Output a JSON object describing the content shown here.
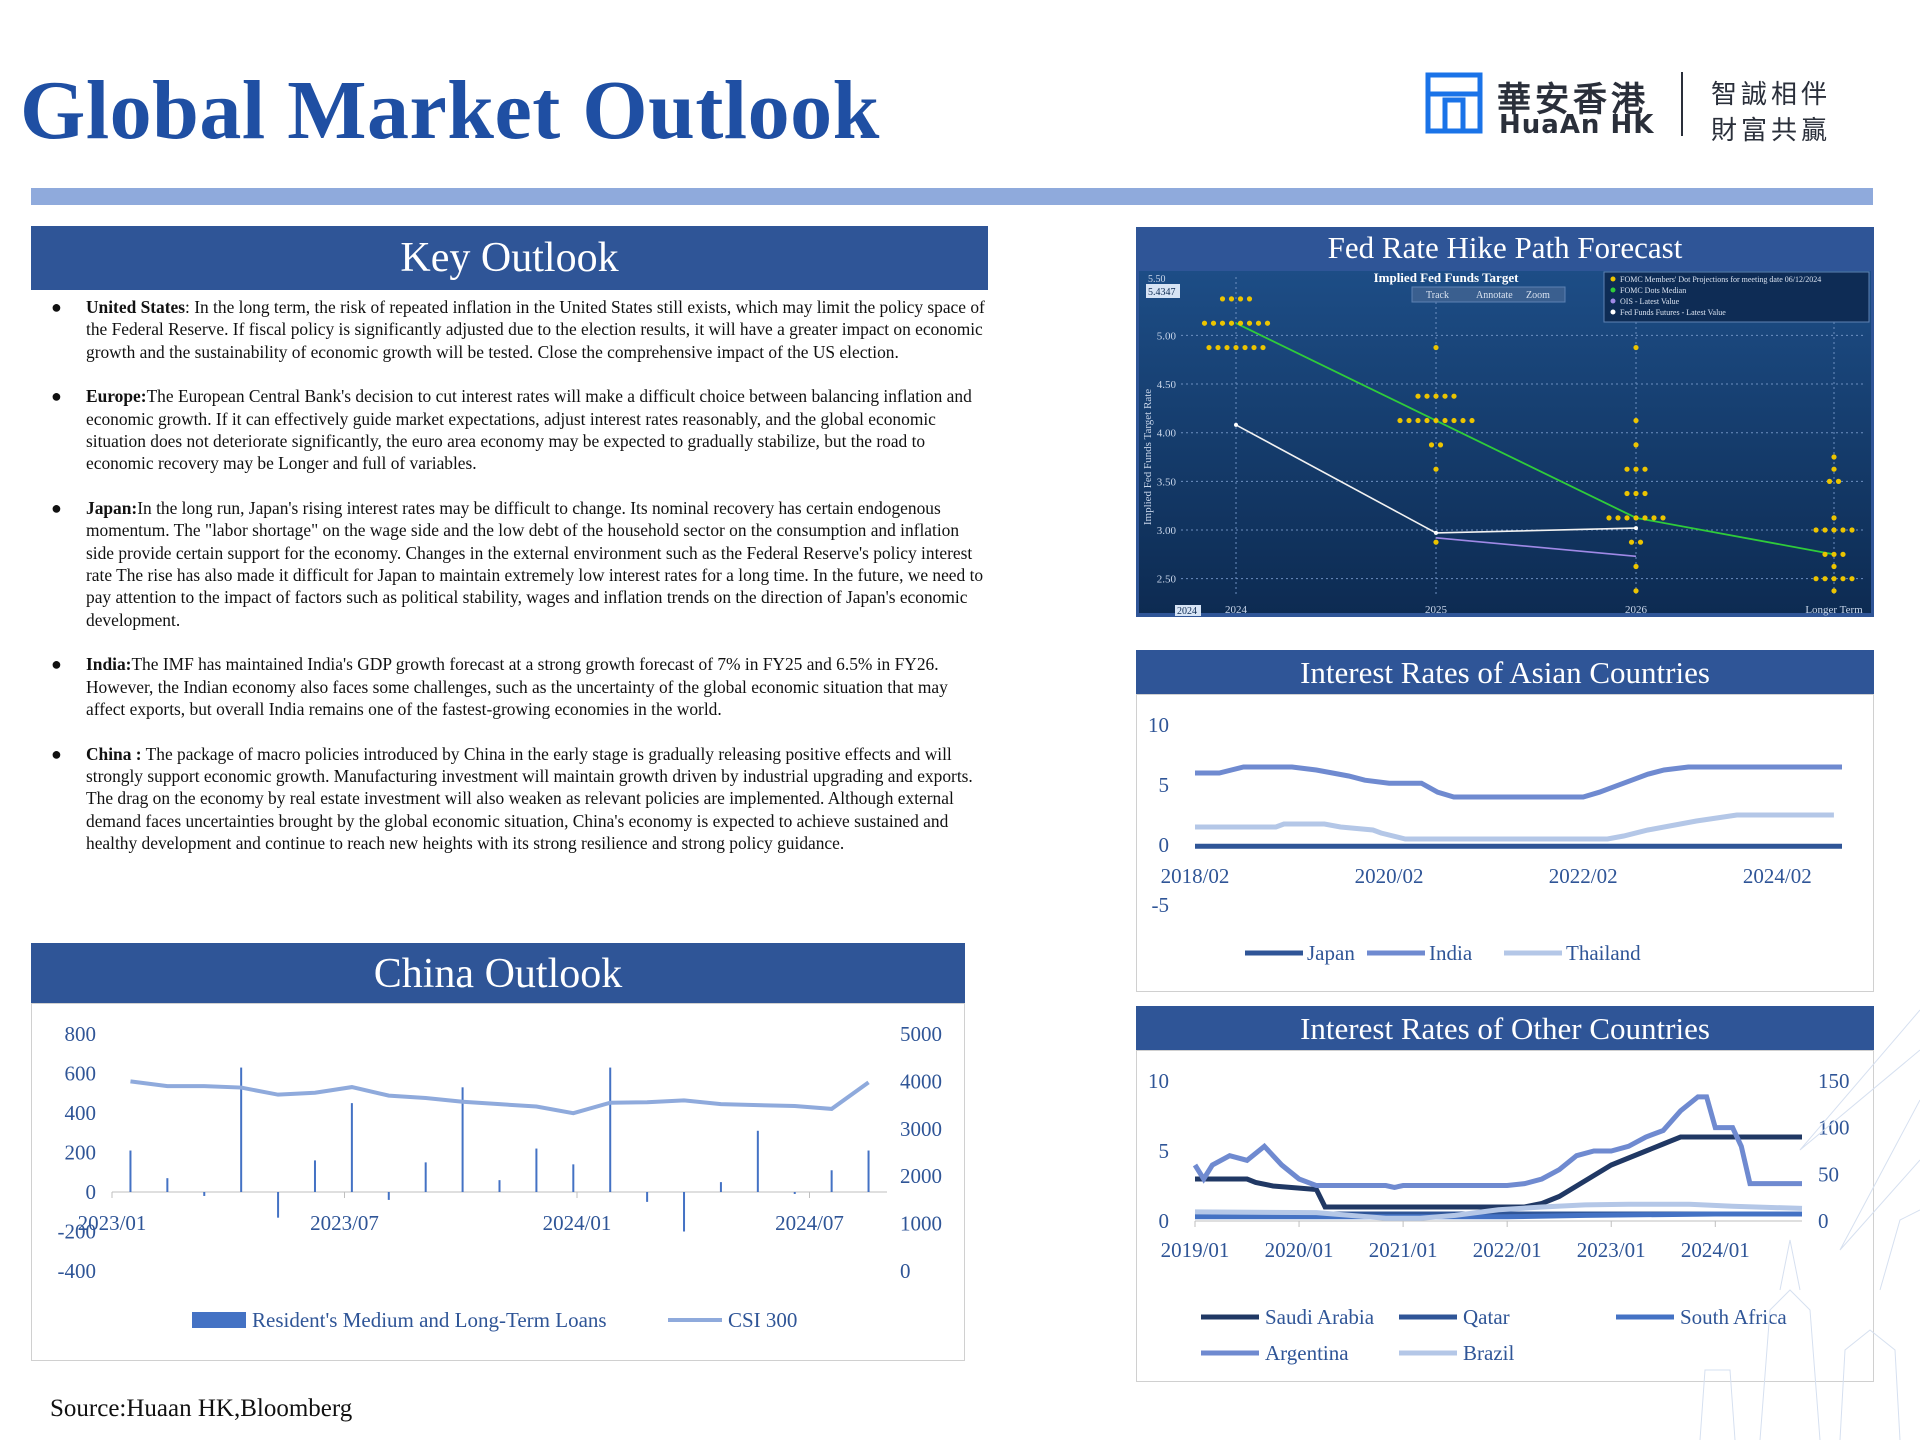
{
  "title": "Global Market Outlook",
  "logo": {
    "cn": "華安香港",
    "en": "HuaAn HK",
    "slogan_line1": "智誠相伴",
    "slogan_line2": "財富共贏"
  },
  "key_outlook": {
    "heading": "Key Outlook",
    "items": [
      {
        "label": "United States",
        "sep": ": ",
        "text": "In the long term, the risk of repeated inflation in the United States still exists, which may limit the policy space of the Federal Reserve. If fiscal policy is significantly adjusted due to the election results, it will have a greater impact on economic growth and the sustainability of economic growth will be tested. Close the comprehensive impact of the US election."
      },
      {
        "label": "Europe:",
        "sep": "",
        "text": "The European Central Bank's decision to cut interest rates will make a difficult choice between balancing inflation and economic growth. If it can effectively guide market expectations, adjust interest rates reasonably, and the global economic situation does not deteriorate significantly, the euro area economy may be expected to gradually stabilize, but the road to economic recovery may be Longer and full of variables."
      },
      {
        "label": "Japan:",
        "sep": "",
        "text": "In the long run, Japan's rising interest rates may be difficult to change. Its nominal recovery has certain endogenous momentum. The \"labor shortage\" on the wage side and the low debt of the household sector on the consumption and inflation side provide certain support for the economy. Changes in the external environment such as the Federal Reserve's policy interest rate The rise has also made it difficult for Japan to maintain extremely low interest rates for a long time. In the future, we need to pay attention to the impact of factors such as political stability, wages and inflation trends on the direction of Japan's economic development."
      },
      {
        "label": "India:",
        "sep": "",
        "text": "The IMF has maintained India's GDP growth forecast at a strong growth forecast of 7% in FY25 and 6.5% in FY26. However, the Indian economy also faces some challenges, such as the uncertainty of the global economic situation that may affect exports, but overall India remains one of the fastest-growing economies in the world."
      },
      {
        "label": "China :",
        "sep": " ",
        "text": "The package of macro policies introduced by China in the early stage is gradually releasing positive effects and will strongly support economic growth. Manufacturing investment will maintain growth driven by industrial upgrading and exports. The drag on the economy by real estate investment will also weaken as relevant policies are implemented. Although external demand faces uncertainties brought by the global economic situation, China's economy is expected to achieve sustained and healthy development and continue to reach new heights with its strong resilience and strong policy guidance."
      }
    ]
  },
  "china_outlook": {
    "heading": "China Outlook"
  },
  "fed_panel": {
    "heading": "Fed Rate Hike Path Forecast"
  },
  "asia_panel": {
    "heading": "Interest Rates of Asian Countries"
  },
  "other_panel": {
    "heading": "Interest Rates of Other Countries"
  },
  "source": "Source:Huaan HK,Bloomberg",
  "colors": {
    "brand_blue": "#2f5597",
    "title_blue": "#1f4fa3",
    "band": "#8faadc"
  },
  "chart_data": [
    {
      "id": "china",
      "type": "bar",
      "x_ticks": [
        "2023/01",
        "2023/07",
        "2024/01",
        "2024/07"
      ],
      "x_tick_index": [
        0,
        6,
        12,
        18
      ],
      "y_ticks_left": [
        800,
        600,
        400,
        200,
        0,
        -200,
        -400
      ],
      "y_ticks_right": [
        5000,
        4000,
        3000,
        2000,
        1000,
        0
      ],
      "ylim_left": [
        -400,
        800
      ],
      "ylim_right": [
        0,
        5000
      ],
      "series": [
        {
          "name": "Resident's Medium and Long-Term Loans",
          "type": "bar",
          "axis": "left",
          "color": "#4472c4",
          "values": [
            210,
            70,
            -20,
            630,
            -130,
            160,
            450,
            -40,
            150,
            530,
            60,
            220,
            140,
            630,
            -50,
            -200,
            50,
            310,
            -10,
            110,
            210
          ]
        },
        {
          "name": "CSI 300",
          "type": "line",
          "axis": "right",
          "color": "#8faadc",
          "values": [
            4000,
            3900,
            3900,
            3870,
            3720,
            3760,
            3880,
            3700,
            3650,
            3570,
            3520,
            3470,
            3330,
            3550,
            3560,
            3600,
            3520,
            3500,
            3480,
            3420,
            3980
          ]
        }
      ]
    },
    {
      "id": "fed",
      "type": "scatter",
      "title": "Implied Fed Funds Target",
      "ylabel": "Implied Fed Funds Target Rate",
      "x_ticks": [
        "2024",
        "2025",
        "2026",
        "Longer Term"
      ],
      "y_ticks": [
        "5.00",
        "4.50",
        "4.00",
        "3.50",
        "3.00",
        "2.50"
      ],
      "ylim": [
        2.25,
        5.6
      ],
      "badges": [
        "5.50",
        "5.4347",
        "2024"
      ],
      "toolbar": [
        "Track",
        "Annotate",
        "Zoom"
      ],
      "legend": [
        "FOMC Members' Dot Projections for meeting date 06/12/2024",
        "FOMC Dots Median",
        "OIS - Latest Value",
        "Fed Funds Futures - Latest Value"
      ],
      "dots": [
        {
          "x": 0,
          "y": 5.375,
          "n": 4
        },
        {
          "x": 0,
          "y": 5.125,
          "n": 8
        },
        {
          "x": 0,
          "y": 4.875,
          "n": 7
        },
        {
          "x": 1,
          "y": 4.875,
          "n": 1
        },
        {
          "x": 1,
          "y": 4.375,
          "n": 5
        },
        {
          "x": 1,
          "y": 4.125,
          "n": 9
        },
        {
          "x": 1,
          "y": 3.875,
          "n": 2
        },
        {
          "x": 1,
          "y": 3.625,
          "n": 1
        },
        {
          "x": 1,
          "y": 2.875,
          "n": 1
        },
        {
          "x": 2,
          "y": 4.875,
          "n": 1
        },
        {
          "x": 2,
          "y": 4.125,
          "n": 1
        },
        {
          "x": 2,
          "y": 3.875,
          "n": 1
        },
        {
          "x": 2,
          "y": 3.625,
          "n": 3
        },
        {
          "x": 2,
          "y": 3.375,
          "n": 3
        },
        {
          "x": 2,
          "y": 3.125,
          "n": 7
        },
        {
          "x": 2,
          "y": 2.875,
          "n": 2
        },
        {
          "x": 2,
          "y": 2.625,
          "n": 1
        },
        {
          "x": 2,
          "y": 2.375,
          "n": 1
        },
        {
          "x": 3,
          "y": 3.75,
          "n": 1
        },
        {
          "x": 3,
          "y": 3.625,
          "n": 1
        },
        {
          "x": 3,
          "y": 3.5,
          "n": 2
        },
        {
          "x": 3,
          "y": 3.125,
          "n": 1
        },
        {
          "x": 3,
          "y": 3.0,
          "n": 5
        },
        {
          "x": 3,
          "y": 2.75,
          "n": 3
        },
        {
          "x": 3,
          "y": 2.625,
          "n": 1
        },
        {
          "x": 3,
          "y": 2.5,
          "n": 5
        },
        {
          "x": 3,
          "y": 2.375,
          "n": 1
        }
      ],
      "median": [
        [
          0,
          5.125
        ],
        [
          1,
          4.125
        ],
        [
          2,
          3.125
        ],
        [
          3,
          2.75
        ]
      ],
      "ois": [
        [
          0,
          4.08
        ],
        [
          1,
          2.97
        ],
        [
          2,
          3.02
        ]
      ],
      "futures": [
        [
          1,
          2.92
        ],
        [
          2,
          2.73
        ]
      ]
    },
    {
      "id": "asia",
      "type": "line",
      "x_ticks": [
        "2018/02",
        "2020/02",
        "2022/02",
        "2024/02"
      ],
      "x_tick_pos": [
        0,
        24,
        48,
        72
      ],
      "y_ticks": [
        10,
        5,
        0,
        -5
      ],
      "ylim": [
        -5,
        10
      ],
      "x_range": [
        0,
        80
      ],
      "series": [
        {
          "name": "Japan",
          "color": "#2f5597",
          "points": [
            [
              0,
              -0.1
            ],
            [
              80,
              -0.1
            ]
          ]
        },
        {
          "name": "India",
          "color": "#6f8ad0",
          "points": [
            [
              0,
              6.0
            ],
            [
              3,
              6.0
            ],
            [
              6,
              6.5
            ],
            [
              12,
              6.5
            ],
            [
              15,
              6.25
            ],
            [
              17,
              6.0
            ],
            [
              19,
              5.75
            ],
            [
              21,
              5.4
            ],
            [
              24,
              5.15
            ],
            [
              28,
              5.15
            ],
            [
              30,
              4.4
            ],
            [
              32,
              4.0
            ],
            [
              48,
              4.0
            ],
            [
              50,
              4.4
            ],
            [
              52,
              4.9
            ],
            [
              54,
              5.4
            ],
            [
              56,
              5.9
            ],
            [
              58,
              6.25
            ],
            [
              61,
              6.5
            ],
            [
              80,
              6.5
            ]
          ]
        },
        {
          "name": "Thailand",
          "color": "#b4c7e7",
          "points": [
            [
              0,
              1.5
            ],
            [
              10,
              1.5
            ],
            [
              11,
              1.75
            ],
            [
              16,
              1.75
            ],
            [
              18,
              1.5
            ],
            [
              22,
              1.25
            ],
            [
              23,
              1.0
            ],
            [
              26,
              0.5
            ],
            [
              51,
              0.5
            ],
            [
              53,
              0.75
            ],
            [
              56,
              1.25
            ],
            [
              62,
              2.0
            ],
            [
              67,
              2.5
            ],
            [
              79,
              2.5
            ]
          ]
        }
      ]
    },
    {
      "id": "others",
      "type": "line",
      "x_ticks": [
        "2019/01",
        "2020/01",
        "2021/01",
        "2022/01",
        "2023/01",
        "2024/01"
      ],
      "x_tick_pos": [
        0,
        12,
        24,
        36,
        48,
        60
      ],
      "y_ticks_left": [
        10,
        5,
        0
      ],
      "y_ticks_right": [
        150,
        100,
        50,
        0
      ],
      "ylim_left": [
        0,
        10
      ],
      "ylim_right": [
        0,
        150
      ],
      "x_range": [
        0,
        70
      ],
      "series": [
        {
          "name": "Saudi Arabia",
          "axis": "left",
          "color": "#203864",
          "points": [
            [
              0,
              3.0
            ],
            [
              6,
              3.0
            ],
            [
              7,
              2.75
            ],
            [
              9,
              2.5
            ],
            [
              14,
              2.25
            ],
            [
              15,
              1.0
            ],
            [
              38,
              1.0
            ],
            [
              40,
              1.25
            ],
            [
              42,
              1.75
            ],
            [
              44,
              2.5
            ],
            [
              46,
              3.25
            ],
            [
              48,
              4.0
            ],
            [
              50,
              4.5
            ],
            [
              52,
              5.0
            ],
            [
              54,
              5.5
            ],
            [
              56,
              6.0
            ],
            [
              70,
              6.0
            ]
          ]
        },
        {
          "name": "Qatar",
          "axis": "left",
          "color": "#2f5597",
          "points": [
            [
              0,
              0.5
            ],
            [
              30,
              0.5
            ],
            [
              70,
              0.5
            ]
          ]
        },
        {
          "name": "South Africa",
          "axis": "left",
          "color": "#4472c4",
          "points": [
            [
              0,
              0.3
            ],
            [
              36,
              0.3
            ],
            [
              45,
              0.4
            ],
            [
              60,
              0.5
            ],
            [
              70,
              0.5
            ]
          ]
        },
        {
          "name": "Argentina",
          "axis": "right",
          "color": "#6f8ad0",
          "points": [
            [
              0,
              60
            ],
            [
              1,
              45
            ],
            [
              2,
              60
            ],
            [
              4,
              70
            ],
            [
              6,
              65
            ],
            [
              8,
              80
            ],
            [
              10,
              60
            ],
            [
              12,
              45
            ],
            [
              14,
              38
            ],
            [
              16,
              38
            ],
            [
              22,
              38
            ],
            [
              23,
              36
            ],
            [
              24,
              38
            ],
            [
              36,
              38
            ],
            [
              38,
              40
            ],
            [
              40,
              45
            ],
            [
              42,
              55
            ],
            [
              44,
              70
            ],
            [
              46,
              75
            ],
            [
              48,
              75
            ],
            [
              50,
              80
            ],
            [
              52,
              90
            ],
            [
              54,
              97
            ],
            [
              56,
              118
            ],
            [
              58,
              133
            ],
            [
              59,
              133
            ],
            [
              60,
              100
            ],
            [
              62,
              100
            ],
            [
              63,
              80
            ],
            [
              64,
              40
            ],
            [
              70,
              40
            ]
          ]
        },
        {
          "name": "Brazil",
          "axis": "left",
          "color": "#b4c7e7",
          "points": [
            [
              0,
              0.65
            ],
            [
              14,
              0.6
            ],
            [
              22,
              0.2
            ],
            [
              26,
              0.2
            ],
            [
              30,
              0.4
            ],
            [
              35,
              0.8
            ],
            [
              40,
              1.0
            ],
            [
              45,
              1.15
            ],
            [
              50,
              1.2
            ],
            [
              57,
              1.2
            ],
            [
              62,
              1.05
            ],
            [
              70,
              0.9
            ]
          ]
        }
      ]
    }
  ]
}
